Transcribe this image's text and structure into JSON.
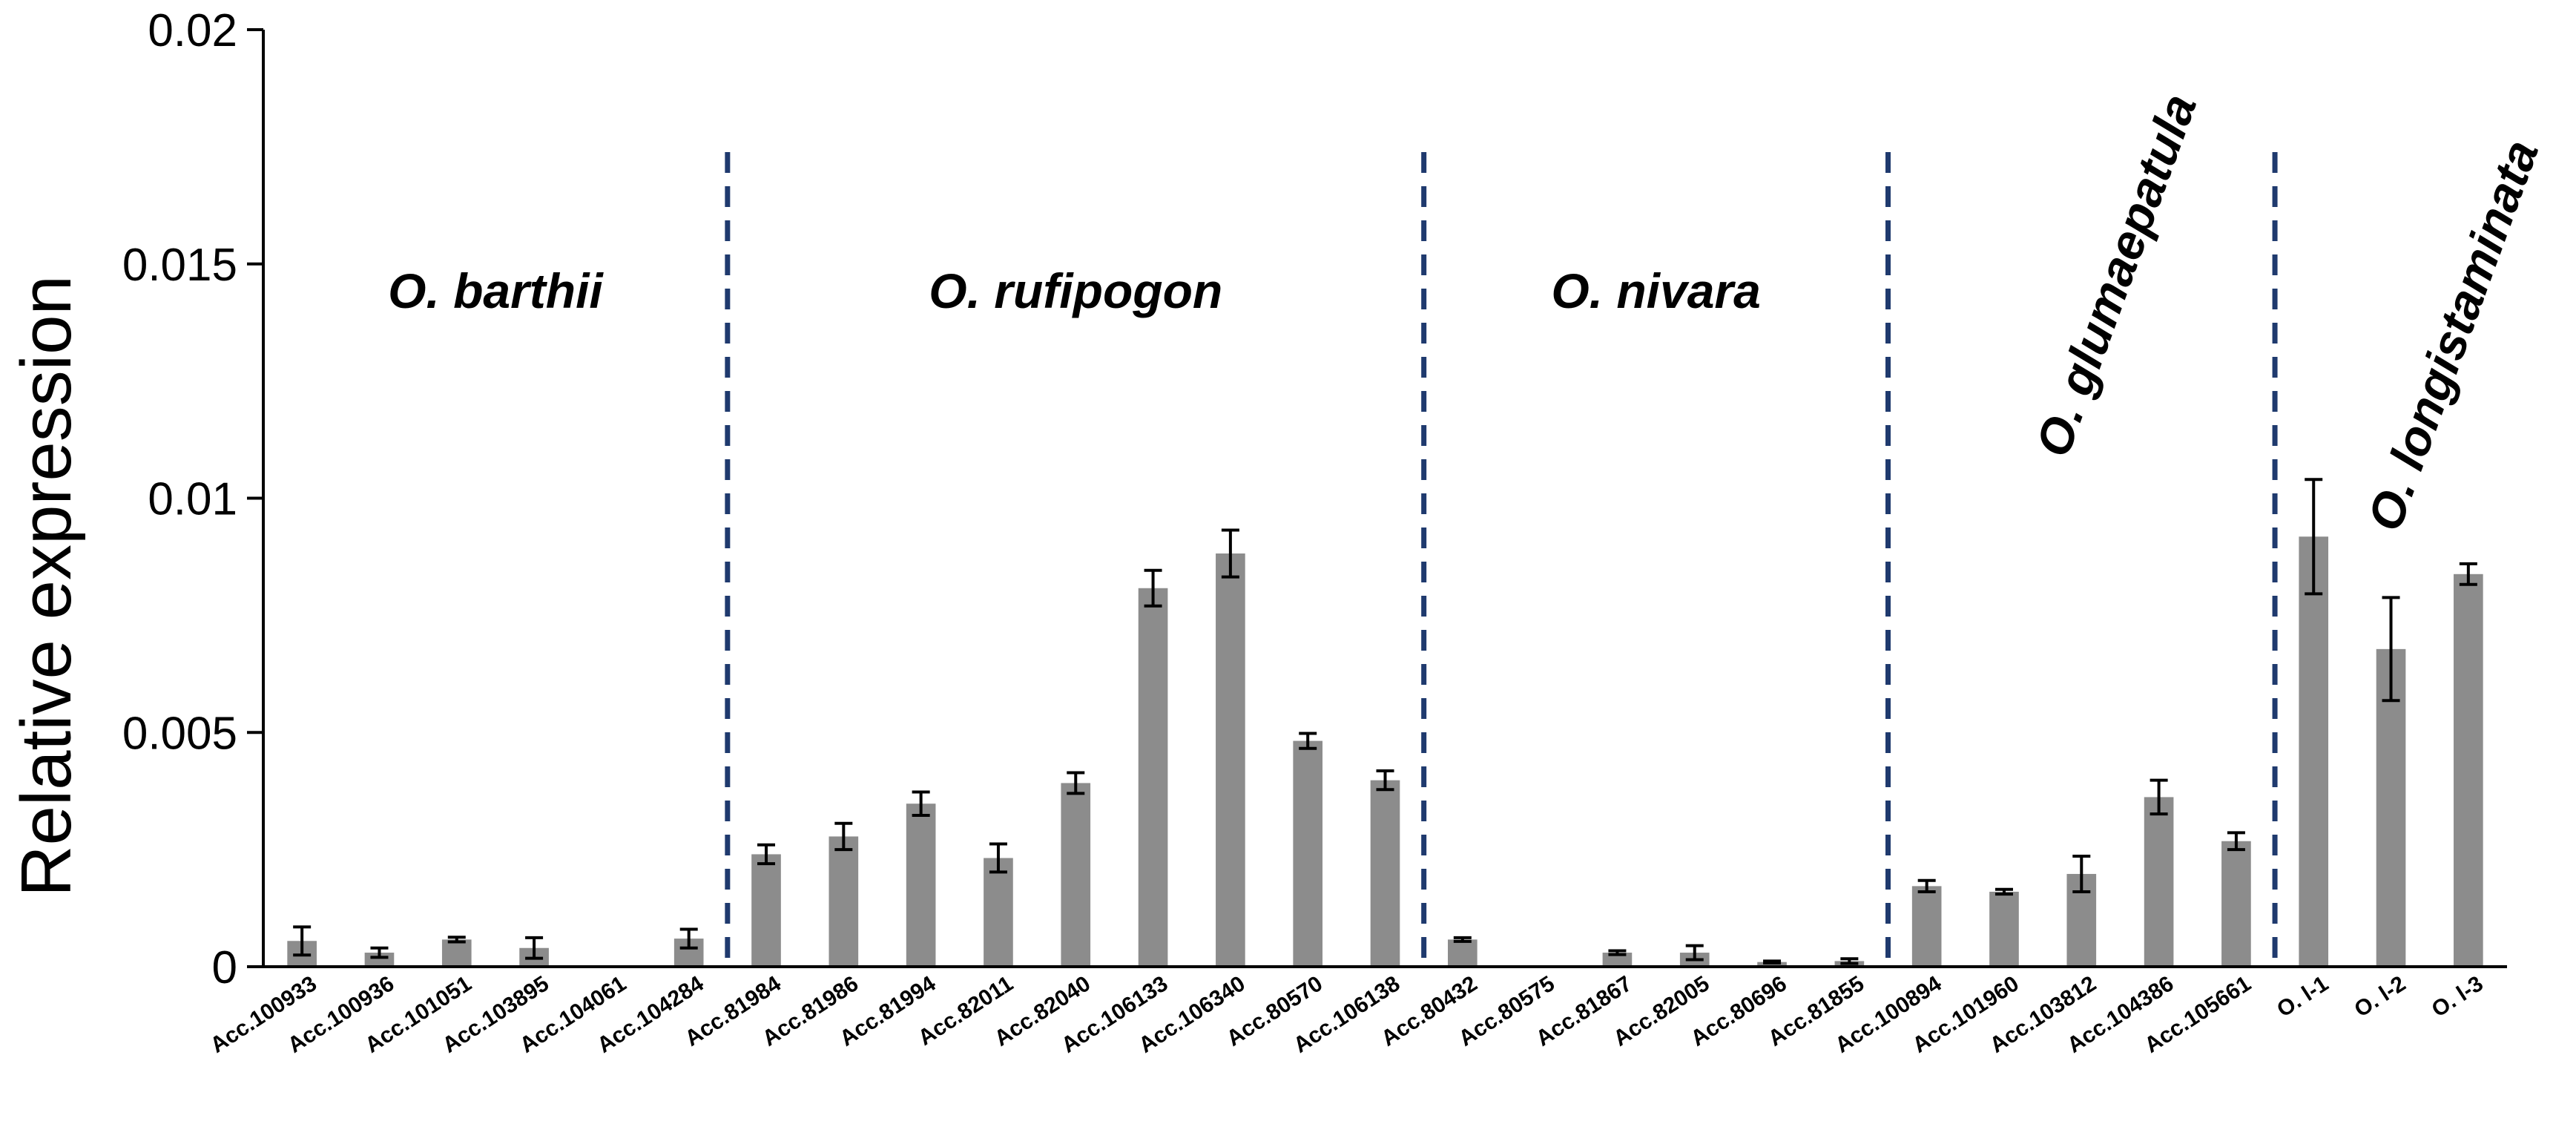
{
  "chart_data": {
    "type": "bar",
    "title": "",
    "xlabel": "",
    "ylabel": "Relative expression",
    "ylim": [
      0,
      0.02
    ],
    "yticks": [
      "0",
      "0.005",
      "0.01",
      "0.015",
      "0.02"
    ],
    "ytick_values": [
      0,
      0.005,
      0.01,
      0.015,
      0.02
    ],
    "grid": false,
    "categories": [
      "Acc.100933",
      "Acc.100936",
      "Acc.101051",
      "Acc.103895",
      "Acc.104061",
      "Acc.104284",
      "Acc.81984",
      "Acc.81986",
      "Acc.81994",
      "Acc.82011",
      "Acc.82040",
      "Acc.106133",
      "Acc.106340",
      "Acc.80570",
      "Acc.106138",
      "Acc.80432",
      "Acc.80575",
      "Acc.81867",
      "Acc.82005",
      "Acc.80696",
      "Acc.81855",
      "Acc.100894",
      "Acc.101960",
      "Acc.103812",
      "Acc.104386",
      "Acc.105661",
      "O. l-1",
      "O. l-2",
      "O. l-3"
    ],
    "values": [
      0.00055,
      0.0003,
      0.00058,
      0.0004,
      0,
      0.0006,
      0.0024,
      0.00278,
      0.00348,
      0.00232,
      0.00392,
      0.00808,
      0.00882,
      0.00482,
      0.00398,
      0.00058,
      0,
      0.0003,
      0.0003,
      0.0001,
      0.00012,
      0.00172,
      0.0016,
      0.00198,
      0.00362,
      0.00268,
      0.00918,
      0.00678,
      0.00838
    ],
    "errors": [
      0.0003,
      0.0001,
      5e-05,
      0.00022,
      0,
      0.0002,
      0.0002,
      0.00028,
      0.00025,
      0.0003,
      0.00022,
      0.00038,
      0.0005,
      0.00016,
      0.0002,
      4e-05,
      0,
      4e-05,
      0.00015,
      2e-05,
      5e-05,
      0.00012,
      5e-05,
      0.00038,
      0.00036,
      0.00018,
      0.00122,
      0.0011,
      0.00022
    ],
    "bar_color": "#8c8c8c",
    "divider_color": "#1f3a6e",
    "dividers_after_index": [
      5,
      14,
      20,
      25
    ],
    "groups": [
      {
        "label": "O. barthii",
        "start": 0,
        "end": 5,
        "rotated": false
      },
      {
        "label": "O. rufipogon",
        "start": 6,
        "end": 14,
        "rotated": false
      },
      {
        "label": "O. nivara",
        "start": 15,
        "end": 20,
        "rotated": false
      },
      {
        "label": "O. glumaepatula",
        "start": 21,
        "end": 25,
        "rotated": true
      },
      {
        "label": "O. longistaminata",
        "start": 26,
        "end": 28,
        "rotated": true
      }
    ]
  }
}
